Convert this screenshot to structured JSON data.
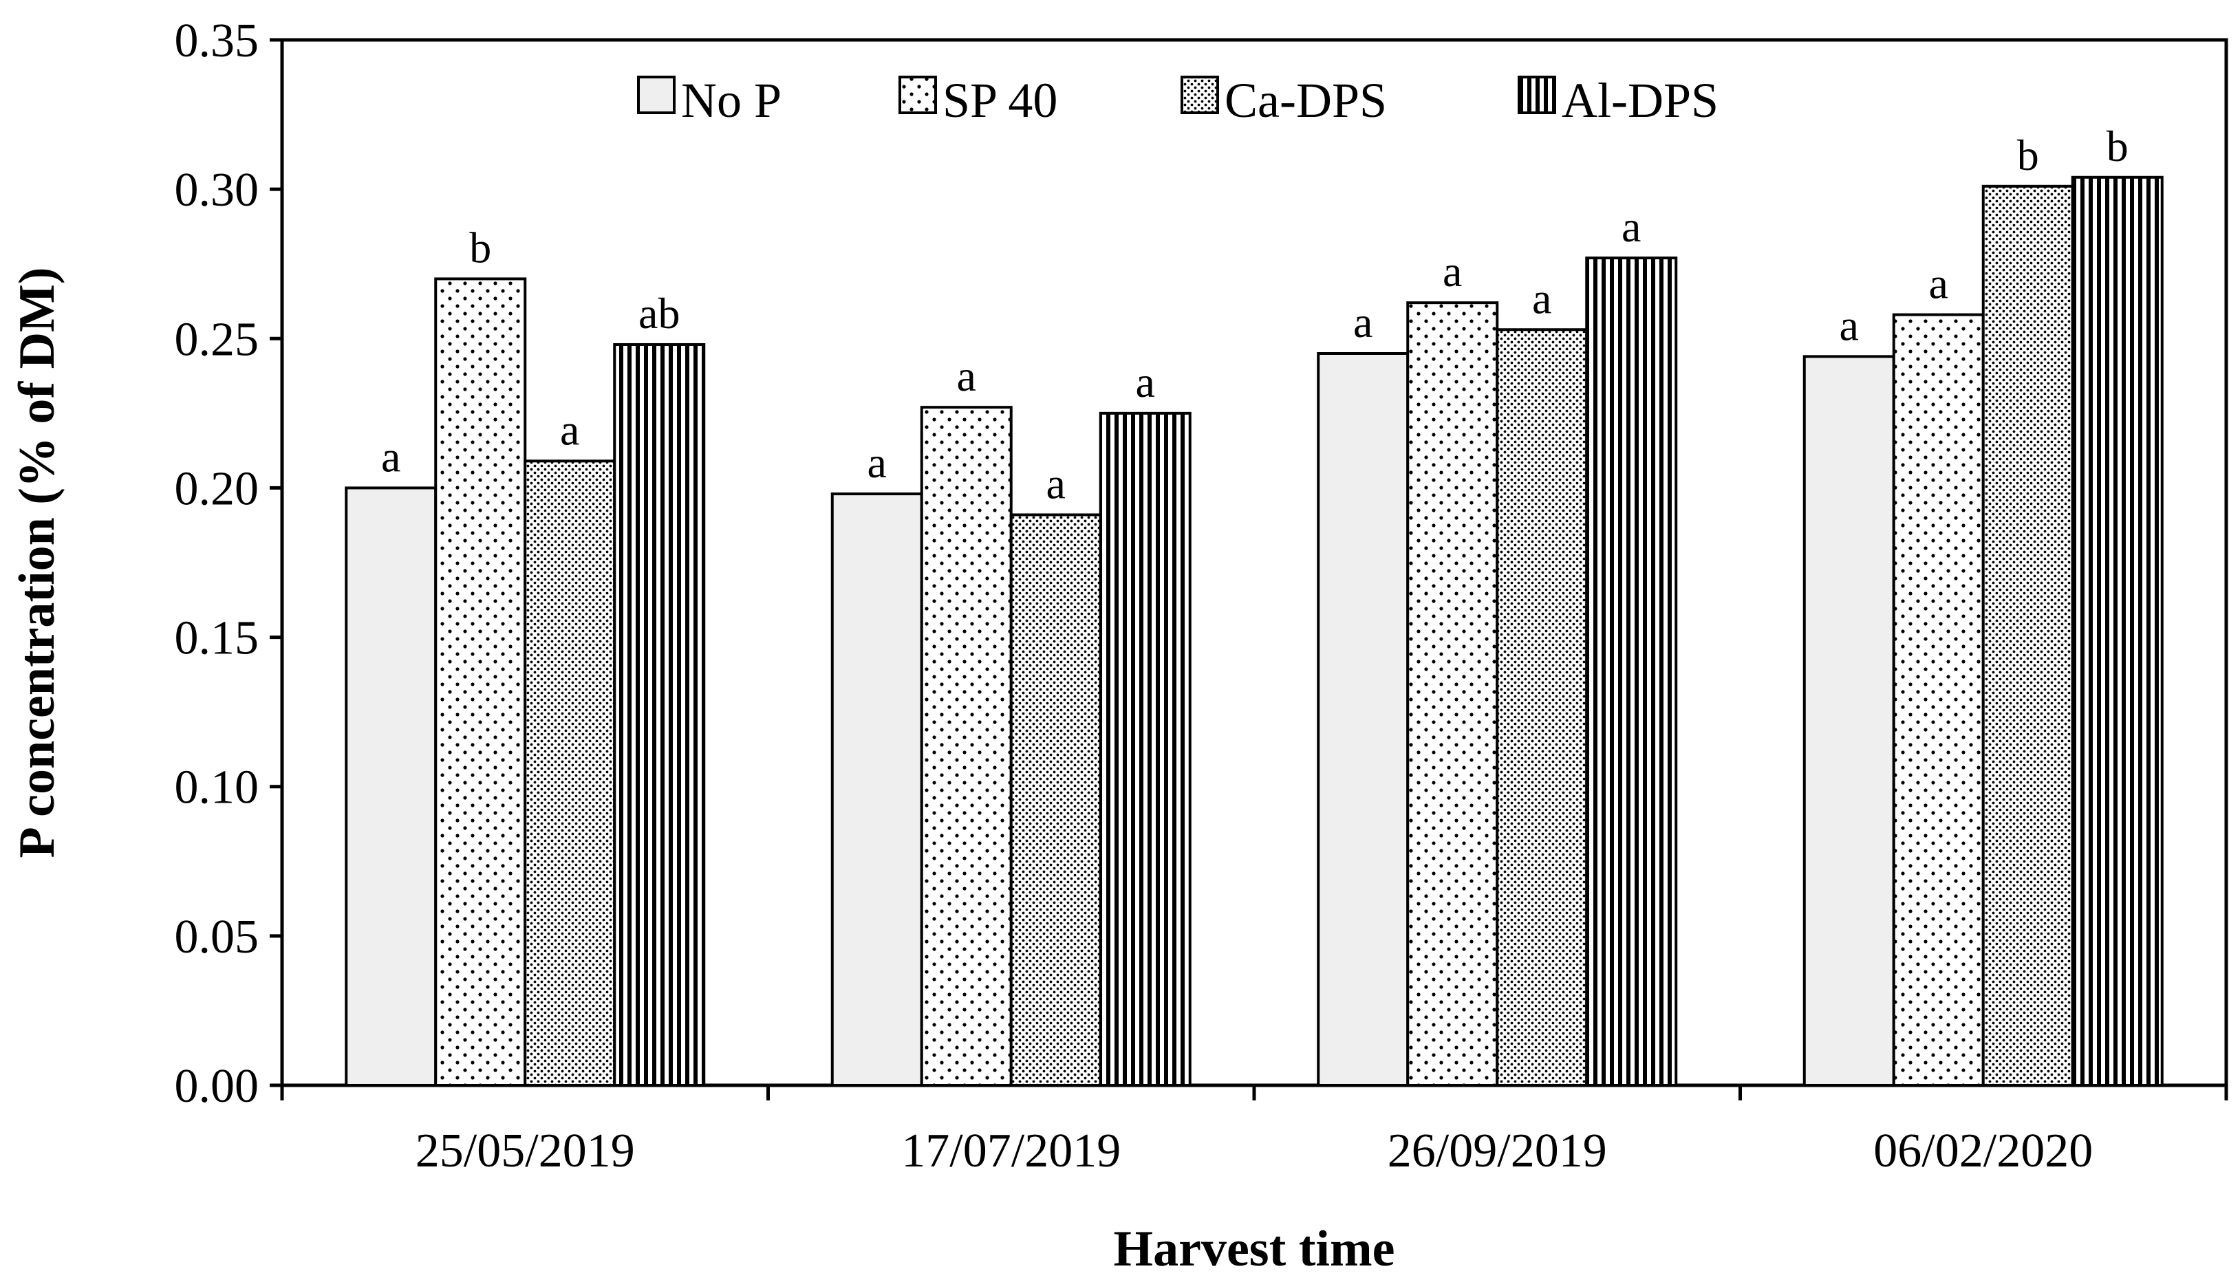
{
  "chart_data": {
    "type": "bar",
    "title": "",
    "xlabel": "Harvest time",
    "ylabel": "P concentration (% of DM)",
    "ylim": [
      0,
      0.35
    ],
    "yticks": [
      "0.00",
      "0.05",
      "0.10",
      "0.15",
      "0.20",
      "0.25",
      "0.30",
      "0.35"
    ],
    "categories": [
      "25/05/2019",
      "17/07/2019",
      "26/09/2019",
      "06/02/2020"
    ],
    "legend_position": "top-center",
    "grid": false,
    "series": [
      {
        "name": "No P",
        "pattern": "solid-light",
        "values": [
          0.2,
          0.198,
          0.245,
          0.244
        ],
        "labels": [
          "a",
          "a",
          "a",
          "a"
        ]
      },
      {
        "name": "SP 40",
        "pattern": "sparse-dots",
        "values": [
          0.27,
          0.227,
          0.262,
          0.258
        ],
        "labels": [
          "b",
          "a",
          "a",
          "a"
        ]
      },
      {
        "name": "Ca-DPS",
        "pattern": "dense-dots",
        "values": [
          0.209,
          0.191,
          0.253,
          0.301
        ],
        "labels": [
          "a",
          "a",
          "a",
          "b"
        ]
      },
      {
        "name": "Al-DPS",
        "pattern": "vertical-lines",
        "values": [
          0.248,
          0.225,
          0.277,
          0.304
        ],
        "labels": [
          "ab",
          "a",
          "a",
          "b"
        ]
      }
    ],
    "colors": {
      "axis": "#000000",
      "bar_edge": "#000000",
      "no_p_fill": "#efefef"
    }
  }
}
